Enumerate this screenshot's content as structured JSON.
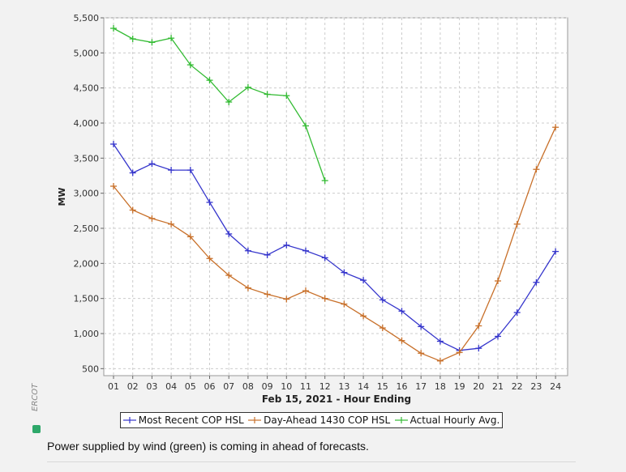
{
  "chart_data": {
    "type": "line",
    "title": "",
    "xlabel": "Feb 15, 2021 - Hour Ending",
    "ylabel": "MW",
    "categories": [
      "01",
      "02",
      "03",
      "04",
      "05",
      "06",
      "07",
      "08",
      "09",
      "10",
      "11",
      "12",
      "13",
      "14",
      "15",
      "16",
      "17",
      "18",
      "19",
      "20",
      "21",
      "22",
      "23",
      "24"
    ],
    "ylim": [
      400,
      5500
    ],
    "yticks": [
      500,
      1000,
      1500,
      2000,
      2500,
      3000,
      3500,
      4000,
      4500,
      5000,
      5500
    ],
    "ytick_labels": [
      "500",
      "1,000",
      "1,500",
      "2,000",
      "2,500",
      "3,000",
      "3,500",
      "4,000",
      "4,500",
      "5,000",
      "5,500"
    ],
    "grid": true,
    "legend_position": "bottom",
    "series": [
      {
        "name": "Most Recent COP HSL",
        "color": "#3535cc",
        "values": [
          3700,
          3290,
          3420,
          3330,
          3330,
          2870,
          2420,
          2180,
          2120,
          2260,
          2180,
          2080,
          1870,
          1760,
          1480,
          1320,
          1100,
          890,
          760,
          790,
          960,
          1300,
          1730,
          2170
        ]
      },
      {
        "name": "Day-Ahead 1430 COP HSL",
        "color": "#c8702a",
        "values": [
          3100,
          2760,
          2640,
          2560,
          2380,
          2070,
          1830,
          1650,
          1560,
          1490,
          1610,
          1500,
          1420,
          1250,
          1080,
          900,
          720,
          610,
          730,
          1110,
          1750,
          2560,
          3340,
          3940
        ]
      },
      {
        "name": "Actual Hourly Avg.",
        "color": "#33bb33",
        "values": [
          5350,
          5200,
          5150,
          5210,
          4830,
          4610,
          4300,
          4510,
          4410,
          4390,
          3960,
          3180,
          null,
          null,
          null,
          null,
          null,
          null,
          null,
          null,
          null,
          null,
          null,
          null
        ]
      }
    ]
  },
  "watermark": "ERCOT",
  "caption": "Power supplied by wind (green) is coming in ahead of forecasts."
}
